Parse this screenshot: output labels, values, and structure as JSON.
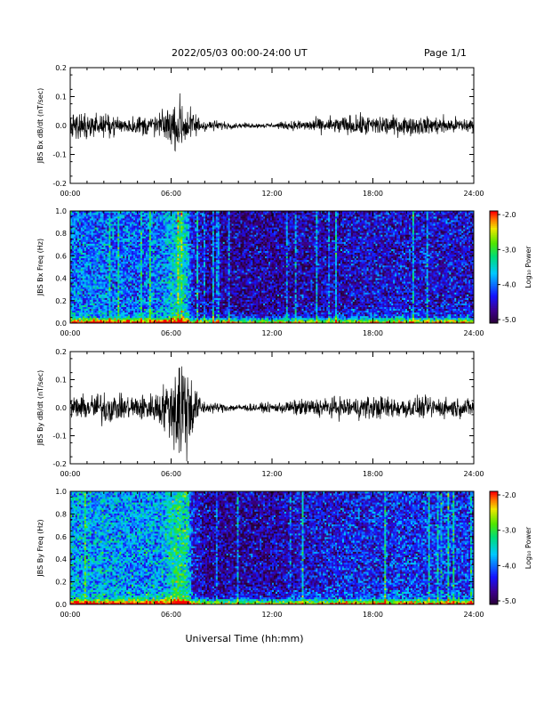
{
  "header": {
    "date_range": "2022/05/03  00:00-24:00 UT",
    "page": "Page 1/1"
  },
  "xlabel": "Universal Time (hh:mm)",
  "colorbar": {
    "label": "Log₁₀ Power",
    "ticks": [
      "-2.0",
      "-3.0",
      "-4.0",
      "-5.0"
    ],
    "range": [
      -5.0,
      -2.0
    ]
  },
  "chart_data": [
    {
      "type": "line",
      "ylabel": "JBS Bx dB/dt (nT/sec)",
      "ylim": [
        -0.2,
        0.2
      ],
      "y_ticks": [
        "0.2",
        "0.1",
        "0.0",
        "-0.1",
        "-0.2"
      ],
      "x_ticks": [
        "00:00",
        "06:00",
        "12:00",
        "18:00",
        "24:00"
      ],
      "xlim_hours": [
        0,
        24
      ],
      "amplitude_profile": {
        "hours": [
          0,
          1,
          3,
          5,
          6,
          6.5,
          7,
          8,
          10,
          12,
          14,
          16,
          18,
          20,
          22,
          24
        ],
        "amplitude": [
          0.025,
          0.02,
          0.015,
          0.018,
          0.03,
          0.05,
          0.03,
          0.01,
          0.004,
          0.004,
          0.01,
          0.015,
          0.018,
          0.015,
          0.015,
          0.012
        ]
      }
    },
    {
      "type": "heatmap",
      "ylabel": "JBS Bx Freq (Hz)",
      "ylim": [
        0.0,
        1.0
      ],
      "y_ticks": [
        "1.0",
        "0.8",
        "0.6",
        "0.4",
        "0.2",
        "0.0"
      ],
      "x_ticks": [
        "00:00",
        "06:00",
        "12:00",
        "18:00",
        "24:00"
      ],
      "xlim_hours": [
        0,
        24
      ],
      "zlim": [
        -5.0,
        -2.0
      ],
      "activity_profile": {
        "hours": [
          0,
          2,
          4,
          5.5,
          6,
          6.5,
          7,
          7.2,
          8,
          10,
          12,
          14,
          16,
          18,
          20,
          22,
          24
        ],
        "mean_log_power": [
          -3.9,
          -3.95,
          -4.0,
          -3.9,
          -3.6,
          -3.4,
          -3.6,
          -4.3,
          -4.55,
          -4.6,
          -4.6,
          -4.55,
          -4.5,
          -4.4,
          -4.4,
          -4.4,
          -4.4
        ]
      }
    },
    {
      "type": "line",
      "ylabel": "JBS By dB/dt (nT/sec)",
      "ylim": [
        -0.2,
        0.2
      ],
      "y_ticks": [
        "0.2",
        "0.1",
        "0.0",
        "-0.1",
        "-0.2"
      ],
      "x_ticks": [
        "00:00",
        "06:00",
        "12:00",
        "18:00",
        "24:00"
      ],
      "xlim_hours": [
        0,
        24
      ],
      "amplitude_profile": {
        "hours": [
          0,
          1,
          2,
          3,
          5,
          6,
          6.5,
          7,
          7.5,
          8,
          10,
          12,
          14,
          16,
          18,
          20,
          22,
          24
        ],
        "amplitude": [
          0.02,
          0.02,
          0.03,
          0.02,
          0.025,
          0.05,
          0.12,
          0.08,
          0.03,
          0.01,
          0.006,
          0.008,
          0.015,
          0.018,
          0.02,
          0.018,
          0.018,
          0.015
        ]
      }
    },
    {
      "type": "heatmap",
      "ylabel": "JBS By Freq (Hz)",
      "ylim": [
        0.0,
        1.0
      ],
      "y_ticks": [
        "1.0",
        "0.8",
        "0.6",
        "0.4",
        "0.2",
        "0.0"
      ],
      "x_ticks": [
        "00:00",
        "06:00",
        "12:00",
        "18:00",
        "24:00"
      ],
      "xlim_hours": [
        0,
        24
      ],
      "zlim": [
        -5.0,
        -2.0
      ],
      "activity_profile": {
        "hours": [
          0,
          2,
          4,
          5.5,
          6,
          6.5,
          7,
          7.3,
          8,
          10,
          12,
          14,
          16,
          18,
          20,
          22,
          24
        ],
        "mean_log_power": [
          -3.7,
          -3.75,
          -3.8,
          -3.75,
          -3.4,
          -3.2,
          -3.4,
          -4.3,
          -4.6,
          -4.6,
          -4.55,
          -4.4,
          -4.3,
          -4.25,
          -4.2,
          -4.2,
          -4.2
        ]
      }
    }
  ]
}
